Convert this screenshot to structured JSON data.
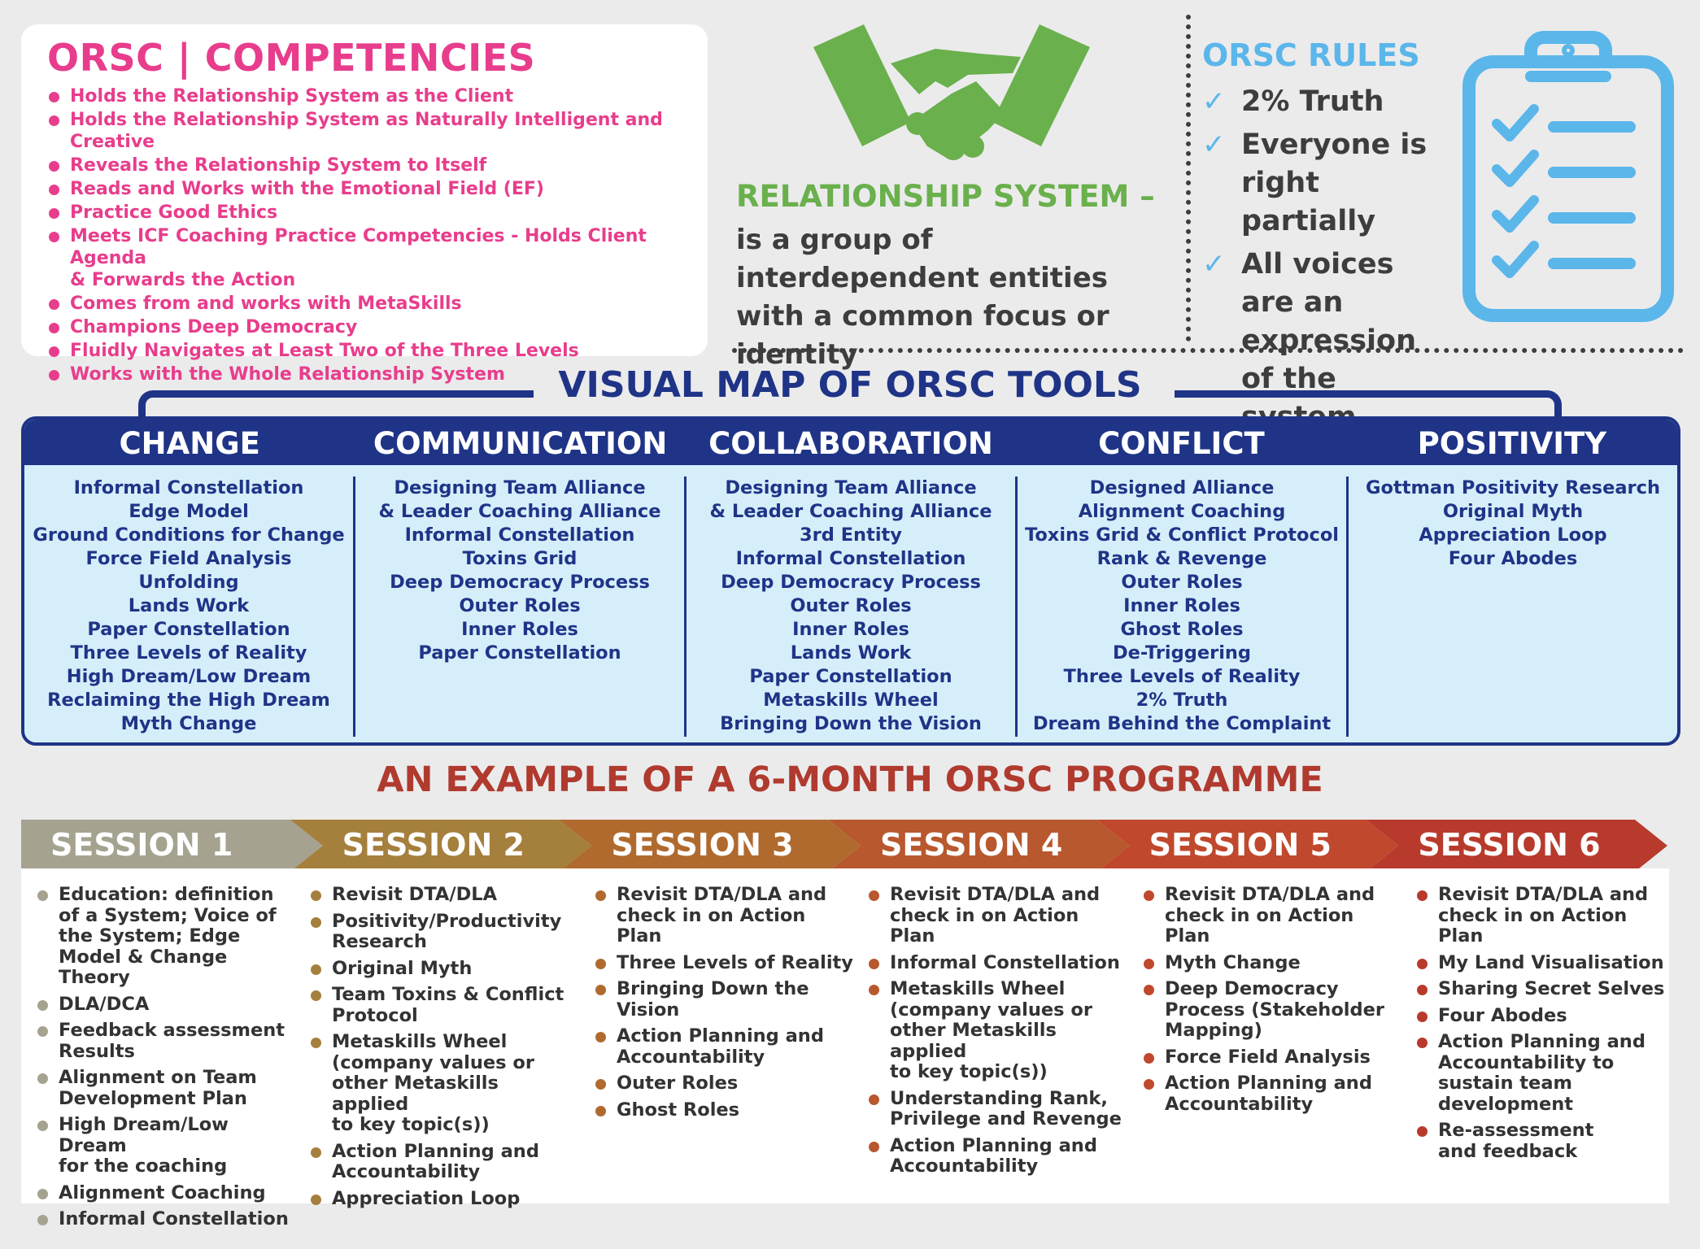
{
  "competencies": {
    "title": "ORSC | COMPETENCIES",
    "items": [
      "Holds the Relationship System as the Client",
      "Holds the Relationship System as Naturally Intelligent and Creative",
      "Reveals the Relationship System to Itself",
      "Reads and Works with the Emotional Field (EF)",
      "Practice Good Ethics",
      "Meets ICF Coaching Practice Competencies - Holds Client Agenda\n& Forwards the Action",
      "Comes from and works with MetaSkills",
      "Champions Deep Democracy",
      "Fluidly Navigates at Least Two of the Three Levels",
      "Works with the Whole Relationship System"
    ]
  },
  "relationship_system": {
    "title": "RELATIONSHIP SYSTEM –",
    "text": "is a group of interdependent entities with a common focus or identity",
    "icon": "handshake-icon"
  },
  "rules": {
    "title": "ORSC RULES",
    "items": [
      "2% Truth",
      "Everyone is right partially",
      "All voices are an expression of the system"
    ],
    "icon": "clipboard-checklist-icon"
  },
  "tools_map": {
    "title": "VISUAL MAP OF ORSC TOOLS",
    "columns": [
      {
        "heading": "CHANGE",
        "items": [
          "Informal Constellation",
          "Edge Model",
          "Ground Conditions for Change",
          "Force Field Analysis",
          "Unfolding",
          "Lands Work",
          "Paper Constellation",
          "Three Levels of Reality",
          "High Dream/Low Dream",
          "Reclaiming the High Dream",
          "Myth Change"
        ]
      },
      {
        "heading": "COMMUNICATION",
        "items": [
          "Designing Team Alliance\n& Leader Coaching Alliance",
          "Informal Constellation",
          "Toxins Grid",
          "Deep Democracy Process",
          "Outer Roles",
          "Inner Roles",
          "Paper Constellation"
        ]
      },
      {
        "heading": "COLLABORATION",
        "items": [
          "Designing Team Alliance\n& Leader Coaching Alliance",
          "3rd Entity",
          "Informal Constellation",
          "Deep Democracy Process",
          "Outer Roles",
          "Inner Roles",
          "Lands Work",
          "Paper Constellation",
          "Metaskills Wheel",
          "Bringing Down the Vision"
        ]
      },
      {
        "heading": "CONFLICT",
        "items": [
          "Designed Alliance",
          "Alignment Coaching",
          "Toxins Grid & Conflict Protocol",
          "Rank & Revenge",
          "Outer Roles",
          "Inner Roles",
          "Ghost Roles",
          "De-Triggering",
          "Three Levels of Reality",
          "2% Truth",
          "Dream Behind the Complaint"
        ]
      },
      {
        "heading": "POSITIVITY",
        "items": [
          "Gottman Positivity Research",
          "Original Myth",
          "Appreciation Loop",
          "Four Abodes"
        ]
      }
    ]
  },
  "programme": {
    "title": "AN EXAMPLE OF A 6-MONTH ORSC PROGRAMME",
    "sessions": [
      {
        "label": "SESSION 1",
        "color": "#a5a290",
        "items": [
          "Education: definition\nof a System; Voice of\nthe System; Edge\nModel & Change Theory",
          "DLA/DCA",
          "Feedback assessment\nResults",
          "Alignment on Team\nDevelopment Plan",
          "High Dream/Low Dream\nfor the coaching",
          "Alignment Coaching",
          "Informal Constellation"
        ]
      },
      {
        "label": "SESSION 2",
        "color": "#a57f3c",
        "items": [
          "Revisit DTA/DLA",
          "Positivity/Productivity\nResearch",
          "Original Myth",
          "Team Toxins & Conflict\nProtocol",
          "Metaskills Wheel\n(company values or\nother Metaskills applied\nto key topic(s))",
          "Action Planning and\nAccountability",
          "Appreciation Loop"
        ]
      },
      {
        "label": "SESSION 3",
        "color": "#b06a2e",
        "items": [
          "Revisit DTA/DLA and\ncheck in on Action Plan",
          "Three Levels of Reality",
          "Bringing Down the\nVision",
          "Action Planning and\nAccountability",
          "Outer Roles",
          "Ghost Roles"
        ]
      },
      {
        "label": "SESSION 4",
        "color": "#b8582e",
        "items": [
          "Revisit DTA/DLA and\ncheck in on Action Plan",
          "Informal Constellation",
          "Metaskills Wheel\n(company values or\nother Metaskills applied\nto key topic(s))",
          "Understanding Rank,\nPrivilege and Revenge",
          "Action Planning and\nAccountability"
        ]
      },
      {
        "label": "SESSION 5",
        "color": "#c0482c",
        "items": [
          "Revisit DTA/DLA and\ncheck in on Action Plan",
          "Myth Change",
          "Deep Democracy\nProcess (Stakeholder\nMapping)",
          "Force Field Analysis",
          "Action Planning and\nAccountability"
        ]
      },
      {
        "label": "SESSION 6",
        "color": "#b83a2c",
        "items": [
          "Revisit DTA/DLA and\ncheck in on Action Plan",
          "My Land Visualisation",
          "Sharing Secret Selves",
          "Four Abodes",
          "Action Planning and\nAccountability to\nsustain team\ndevelopment",
          "Re-assessment\nand feedback"
        ]
      }
    ]
  }
}
